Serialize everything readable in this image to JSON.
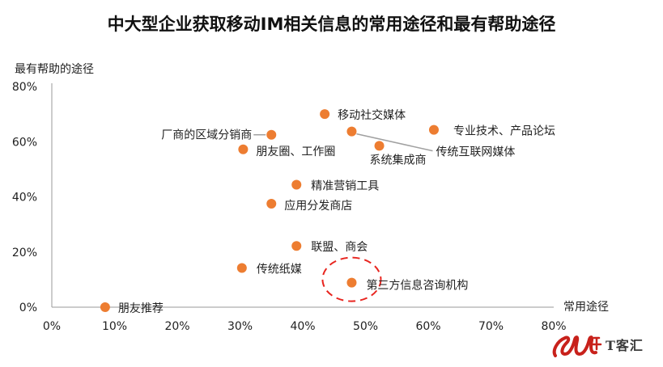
{
  "chart_data": {
    "type": "scatter",
    "title": "中大型企业获取移动IM相关信息的常用途径和最有帮助途径",
    "xlabel": "常用途径",
    "ylabel": "最有帮助的途径",
    "xlim": [
      0,
      80
    ],
    "ylim": [
      0,
      80
    ],
    "x_ticks": [
      0,
      10,
      20,
      30,
      40,
      50,
      60,
      70,
      80
    ],
    "y_ticks": [
      0,
      20,
      40,
      60,
      80
    ],
    "x_tick_labels": [
      "0%",
      "10%",
      "20%",
      "30%",
      "40%",
      "50%",
      "60%",
      "70%",
      "80%"
    ],
    "y_tick_labels": [
      "0%",
      "20%",
      "40%",
      "60%",
      "80%"
    ],
    "point_color": "#ED7D31",
    "highlight_color": "#E8251F",
    "highlight_label": "第三方信息咨询机构",
    "grid": false,
    "legend": "none",
    "points": [
      {
        "label": "朋友推荐",
        "x": 8.5,
        "y": 0
      },
      {
        "label": "传统纸媒",
        "x": 30.3,
        "y": 14.2
      },
      {
        "label": "朋友圈、工作圈",
        "x": 30.5,
        "y": 57.2
      },
      {
        "label": "厂商的区域分销商",
        "x": 35.0,
        "y": 62.5
      },
      {
        "label": "应用分发商店",
        "x": 35.0,
        "y": 37.5
      },
      {
        "label": "精准营销工具",
        "x": 39.0,
        "y": 44.4
      },
      {
        "label": "联盟、商会",
        "x": 39.0,
        "y": 22.2
      },
      {
        "label": "移动社交媒体",
        "x": 43.5,
        "y": 70.0
      },
      {
        "label": "传统互联网媒体",
        "x": 47.8,
        "y": 63.7
      },
      {
        "label": "第三方信息咨询机构",
        "x": 47.8,
        "y": 8.9
      },
      {
        "label": "系统集成商",
        "x": 52.2,
        "y": 58.5
      },
      {
        "label": "专业技术、产品论坛",
        "x": 60.9,
        "y": 64.3
      }
    ]
  },
  "logo": {
    "text": "T客汇",
    "colors": [
      "#C8211B",
      "#3A3A3A"
    ]
  }
}
